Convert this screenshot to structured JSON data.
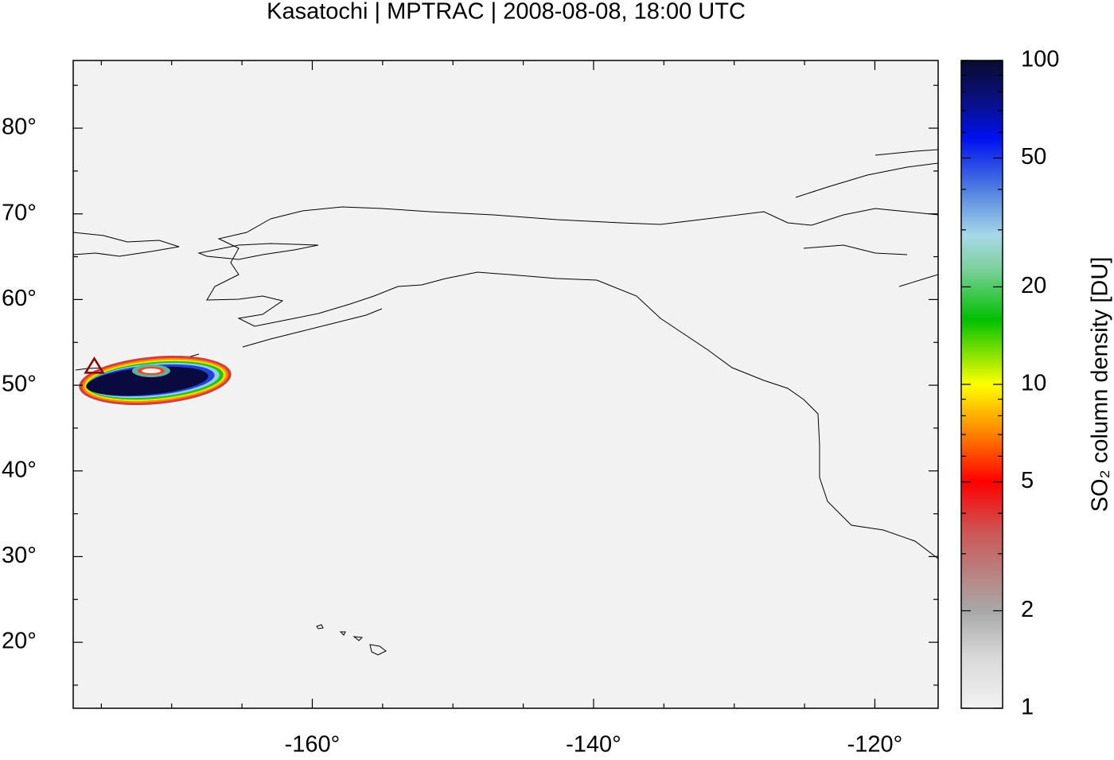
{
  "chart_data": {
    "type": "map",
    "title": "Kasatochi | MPTRAC | 2008-08-08, 18:00 UTC",
    "xlim": [
      -177,
      -115.5
    ],
    "ylim": [
      12.3,
      87.9
    ],
    "xticks": [
      {
        "value": -160,
        "label": "-160°"
      },
      {
        "value": -140,
        "label": "-140°"
      },
      {
        "value": -120,
        "label": "-120°"
      }
    ],
    "xminorticks": [
      -175,
      -170,
      -165,
      -155,
      -150,
      -145,
      -135,
      -130,
      -125,
      -120
    ],
    "yticks": [
      {
        "value": 20,
        "label": "20°"
      },
      {
        "value": 30,
        "label": "30°"
      },
      {
        "value": 40,
        "label": "40°"
      },
      {
        "value": 50,
        "label": "50°"
      },
      {
        "value": 60,
        "label": "60°"
      },
      {
        "value": 70,
        "label": "70°"
      },
      {
        "value": 80,
        "label": "80°"
      }
    ],
    "yminorticks": [
      15,
      25,
      35,
      45,
      55,
      65,
      75,
      85
    ],
    "volcano": {
      "x": -175.5,
      "y": 52.2,
      "color": "#8b0000"
    },
    "colorbar": {
      "lim": [
        1,
        100
      ],
      "scale": "log",
      "ticks": [
        1,
        2,
        5,
        10,
        20,
        50,
        100
      ],
      "minorticks": [
        3,
        4,
        6,
        7,
        8,
        9,
        30,
        40,
        60,
        70,
        80,
        90
      ],
      "label": "SO₂ column density [DU]"
    }
  }
}
